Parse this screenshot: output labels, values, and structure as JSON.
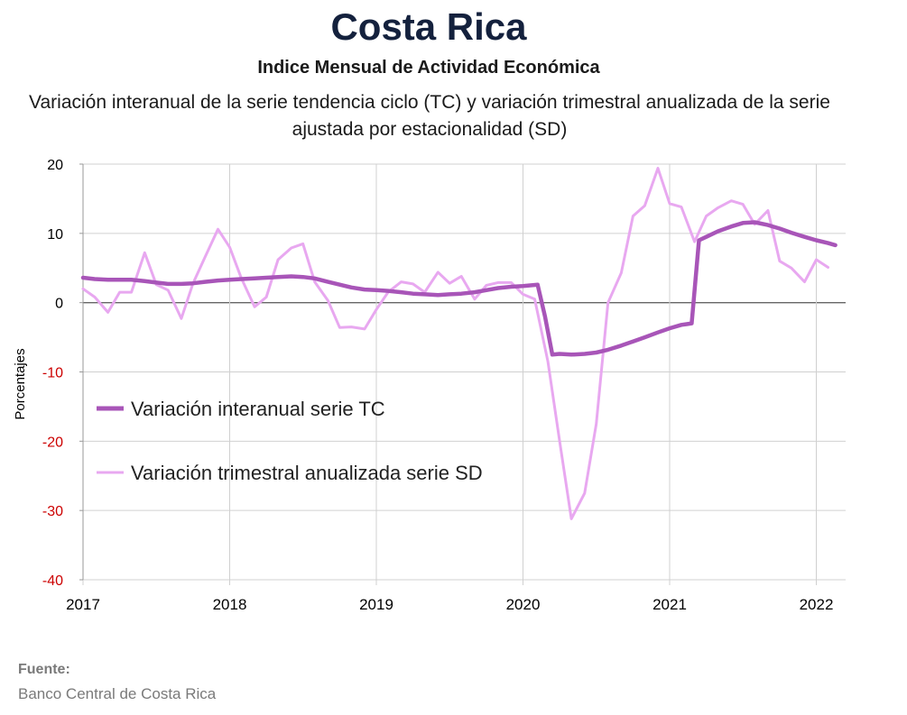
{
  "header": {
    "title": "Costa Rica",
    "subtitle": "Indice Mensual de  Actividad Económica",
    "description": "Variación interanual de la serie tendencia ciclo (TC) y variación trimestral anualizada de la serie ajustada por estacionalidad (SD)"
  },
  "source": {
    "label": "Fuente:",
    "text": "Banco Central de Costa Rica"
  },
  "chart_data": {
    "type": "line",
    "ylabel": "Porcentajes",
    "ylim": [
      -40,
      20
    ],
    "xlim": [
      2017,
      2022.2
    ],
    "yticks": [
      20,
      10,
      0,
      -10,
      -20,
      -30,
      -40
    ],
    "xticks": [
      "2017",
      "2018",
      "2019",
      "2020",
      "2021",
      "2022"
    ],
    "negative_tick_color": "#cc0000",
    "grid": true,
    "legend_position": "left, middle",
    "series": [
      {
        "name": "Variación interanual serie TC",
        "color": "#a855b8",
        "points": [
          [
            2017.0,
            3.6
          ],
          [
            2017.08,
            3.4
          ],
          [
            2017.17,
            3.3
          ],
          [
            2017.25,
            3.3
          ],
          [
            2017.33,
            3.3
          ],
          [
            2017.42,
            3.1
          ],
          [
            2017.5,
            2.9
          ],
          [
            2017.58,
            2.7
          ],
          [
            2017.67,
            2.7
          ],
          [
            2017.75,
            2.8
          ],
          [
            2017.83,
            3.0
          ],
          [
            2017.92,
            3.2
          ],
          [
            2018.0,
            3.3
          ],
          [
            2018.08,
            3.4
          ],
          [
            2018.17,
            3.5
          ],
          [
            2018.25,
            3.6
          ],
          [
            2018.33,
            3.7
          ],
          [
            2018.42,
            3.8
          ],
          [
            2018.5,
            3.7
          ],
          [
            2018.58,
            3.5
          ],
          [
            2018.67,
            3.0
          ],
          [
            2018.75,
            2.6
          ],
          [
            2018.83,
            2.2
          ],
          [
            2018.92,
            1.9
          ],
          [
            2019.0,
            1.8
          ],
          [
            2019.08,
            1.7
          ],
          [
            2019.17,
            1.5
          ],
          [
            2019.25,
            1.3
          ],
          [
            2019.33,
            1.2
          ],
          [
            2019.42,
            1.1
          ],
          [
            2019.5,
            1.2
          ],
          [
            2019.58,
            1.3
          ],
          [
            2019.67,
            1.5
          ],
          [
            2019.75,
            1.8
          ],
          [
            2019.83,
            2.1
          ],
          [
            2019.92,
            2.3
          ],
          [
            2020.0,
            2.4
          ],
          [
            2020.05,
            2.5
          ],
          [
            2020.1,
            2.6
          ],
          [
            2020.15,
            -2.0
          ],
          [
            2020.2,
            -7.5
          ],
          [
            2020.25,
            -7.4
          ],
          [
            2020.33,
            -7.5
          ],
          [
            2020.42,
            -7.4
          ],
          [
            2020.5,
            -7.2
          ],
          [
            2020.58,
            -6.8
          ],
          [
            2020.67,
            -6.2
          ],
          [
            2020.75,
            -5.6
          ],
          [
            2020.83,
            -5.0
          ],
          [
            2020.92,
            -4.3
          ],
          [
            2021.0,
            -3.7
          ],
          [
            2021.08,
            -3.2
          ],
          [
            2021.15,
            -3.0
          ],
          [
            2021.2,
            9.0
          ],
          [
            2021.25,
            9.5
          ],
          [
            2021.33,
            10.3
          ],
          [
            2021.42,
            11.0
          ],
          [
            2021.5,
            11.5
          ],
          [
            2021.58,
            11.6
          ],
          [
            2021.67,
            11.2
          ],
          [
            2021.75,
            10.7
          ],
          [
            2021.83,
            10.1
          ],
          [
            2021.92,
            9.5
          ],
          [
            2022.0,
            9.0
          ],
          [
            2022.08,
            8.6
          ],
          [
            2022.13,
            8.3
          ]
        ]
      },
      {
        "name": "Variación trimestral anualizada serie SD",
        "color": "#e8a8f0",
        "points": [
          [
            2017.0,
            2.0
          ],
          [
            2017.08,
            0.8
          ],
          [
            2017.17,
            -1.4
          ],
          [
            2017.25,
            1.5
          ],
          [
            2017.33,
            1.5
          ],
          [
            2017.42,
            7.2
          ],
          [
            2017.5,
            2.6
          ],
          [
            2017.58,
            1.8
          ],
          [
            2017.67,
            -2.3
          ],
          [
            2017.75,
            2.8
          ],
          [
            2017.83,
            6.5
          ],
          [
            2017.92,
            10.6
          ],
          [
            2018.0,
            8.0
          ],
          [
            2018.08,
            3.5
          ],
          [
            2018.17,
            -0.6
          ],
          [
            2018.25,
            0.8
          ],
          [
            2018.33,
            6.2
          ],
          [
            2018.42,
            7.9
          ],
          [
            2018.5,
            8.5
          ],
          [
            2018.58,
            3.0
          ],
          [
            2018.67,
            0.3
          ],
          [
            2018.75,
            -3.6
          ],
          [
            2018.83,
            -3.5
          ],
          [
            2018.92,
            -3.8
          ],
          [
            2019.0,
            -1.0
          ],
          [
            2019.08,
            1.5
          ],
          [
            2019.17,
            3.0
          ],
          [
            2019.25,
            2.7
          ],
          [
            2019.33,
            1.5
          ],
          [
            2019.42,
            4.4
          ],
          [
            2019.5,
            2.8
          ],
          [
            2019.58,
            3.8
          ],
          [
            2019.67,
            0.5
          ],
          [
            2019.75,
            2.5
          ],
          [
            2019.83,
            2.9
          ],
          [
            2019.92,
            2.9
          ],
          [
            2020.0,
            1.2
          ],
          [
            2020.08,
            0.5
          ],
          [
            2020.17,
            -8.5
          ],
          [
            2020.25,
            -20.0
          ],
          [
            2020.33,
            -31.2
          ],
          [
            2020.42,
            -27.5
          ],
          [
            2020.5,
            -17.5
          ],
          [
            2020.58,
            0.0
          ],
          [
            2020.67,
            4.3
          ],
          [
            2020.75,
            12.5
          ],
          [
            2020.83,
            14.0
          ],
          [
            2020.92,
            19.4
          ],
          [
            2021.0,
            14.3
          ],
          [
            2021.08,
            13.8
          ],
          [
            2021.17,
            8.8
          ],
          [
            2021.25,
            12.5
          ],
          [
            2021.33,
            13.7
          ],
          [
            2021.42,
            14.7
          ],
          [
            2021.5,
            14.2
          ],
          [
            2021.58,
            11.3
          ],
          [
            2021.67,
            13.3
          ],
          [
            2021.75,
            6.0
          ],
          [
            2021.83,
            5.0
          ],
          [
            2021.92,
            3.0
          ],
          [
            2022.0,
            6.2
          ],
          [
            2022.08,
            5.1
          ]
        ]
      }
    ]
  }
}
